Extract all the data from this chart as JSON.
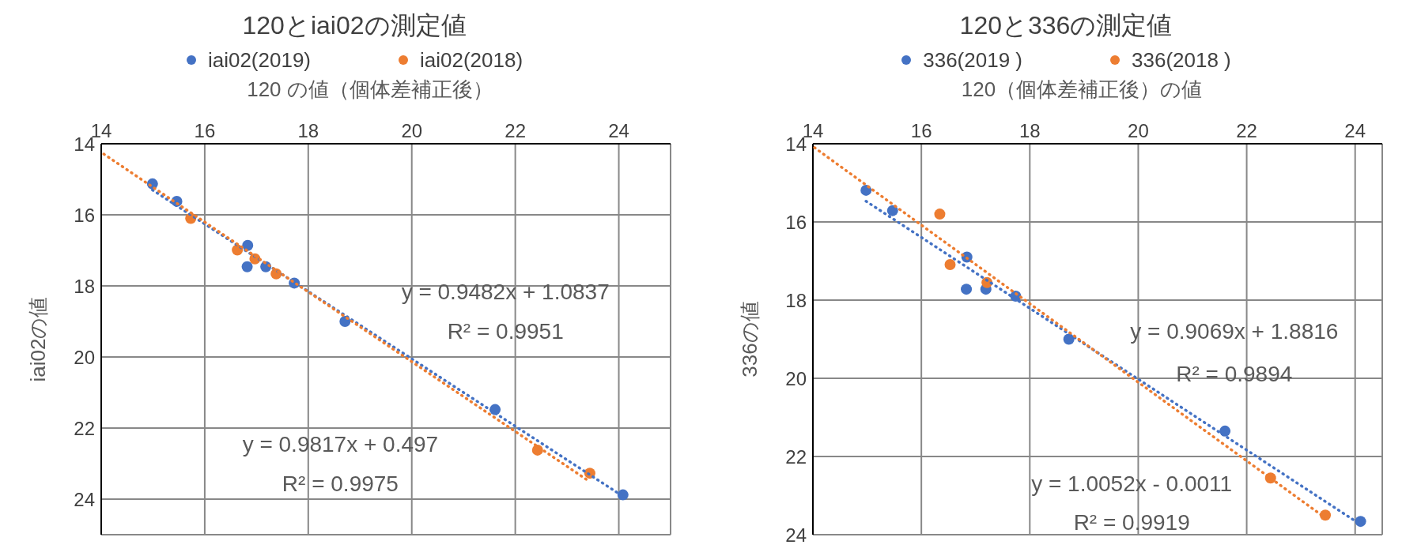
{
  "chart_data": [
    {
      "type": "scatter",
      "title": "120とiai02の測定値",
      "xlabel": "120 の値（個体差補正後）",
      "ylabel": "iai02の値",
      "xlim": [
        14,
        25
      ],
      "xticks": [
        14,
        16,
        18,
        20,
        22,
        24
      ],
      "ylim": [
        25,
        14
      ],
      "yticks": [
        14,
        16,
        18,
        20,
        22,
        24
      ],
      "grid": true,
      "legend": "top",
      "marker": "circle",
      "series": [
        {
          "name": "iai02(2019)",
          "color": "#4472c4",
          "x": [
            14.99,
            15.46,
            16.83,
            16.82,
            17.18,
            17.73,
            18.71,
            21.61,
            24.08
          ],
          "values": [
            15.13,
            15.62,
            16.86,
            17.46,
            17.46,
            17.92,
            19.0,
            21.48,
            23.88
          ]
        },
        {
          "name": "iai02(2018)",
          "color": "#ed7d31",
          "x": [
            15.73,
            16.63,
            16.97,
            17.38,
            22.43,
            23.44
          ],
          "values": [
            16.1,
            16.99,
            17.24,
            17.66,
            22.62,
            23.27
          ]
        },
        {
          "type": "line",
          "color": "#4472c4",
          "line_style": "dotted",
          "marker": "none",
          "x": [
            14.99,
            24.08
          ],
          "values": [
            15.3,
            23.92
          ]
        },
        {
          "type": "line",
          "color": "#ed7d31",
          "line_style": "dotted",
          "marker": "none",
          "x": [
            14.05,
            23.44
          ],
          "values": [
            14.29,
            23.51
          ]
        }
      ],
      "annotations": [
        "y = 0.9482x + 1.0837",
        "R² = 0.9951",
        "y = 0.9817x + 0.497",
        "R² = 0.9975"
      ]
    },
    {
      "type": "scatter",
      "title": "120と336の測定値",
      "xlabel": "120（個体差補正後）の値",
      "ylabel": "336の値",
      "xlim": [
        14,
        24.5
      ],
      "xticks": [
        14,
        16,
        18,
        20,
        22,
        24
      ],
      "ylim": [
        24,
        14
      ],
      "yticks": [
        14,
        16,
        18,
        20,
        22,
        24
      ],
      "grid": true,
      "legend": "top",
      "marker": "circle",
      "series": [
        {
          "name": "336(2019 )",
          "color": "#4472c4",
          "x": [
            14.98,
            15.47,
            16.84,
            16.83,
            17.19,
            17.74,
            18.72,
            21.6,
            24.1
          ],
          "values": [
            15.19,
            15.71,
            16.9,
            17.72,
            17.72,
            17.9,
            19.0,
            21.35,
            23.66
          ]
        },
        {
          "name": "336(2018 )",
          "color": "#ed7d31",
          "x": [
            16.34,
            16.53,
            17.21,
            22.44,
            23.45
          ],
          "values": [
            15.8,
            17.09,
            17.55,
            22.55,
            23.5
          ]
        },
        {
          "type": "line",
          "color": "#4472c4",
          "line_style": "dotted",
          "marker": "none",
          "x": [
            14.98,
            24.1
          ],
          "values": [
            15.47,
            23.74
          ]
        },
        {
          "type": "line",
          "color": "#ed7d31",
          "line_style": "dotted",
          "marker": "none",
          "x": [
            14.03,
            23.45
          ],
          "values": [
            14.1,
            23.57
          ]
        }
      ],
      "annotations": [
        "y = 0.9069x + 1.8816",
        "R² = 0.9894",
        "y = 1.0052x - 0.0011",
        "R² = 0.9919"
      ]
    }
  ]
}
